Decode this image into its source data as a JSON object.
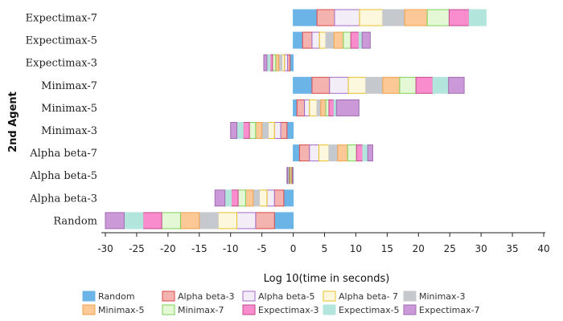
{
  "chart_data": {
    "type": "bar",
    "orientation": "horizontal",
    "stacked": "diverging",
    "xlabel": "Log 10(time in seconds)",
    "ylabel": "2nd Agent",
    "xlim": [
      -30,
      40
    ],
    "xticks": [
      -30,
      -25,
      -20,
      -15,
      -10,
      -5,
      0,
      5,
      10,
      15,
      20,
      25,
      30,
      35,
      40
    ],
    "grid": false,
    "legend_position": "bottom",
    "categories": [
      "Expectimax-7",
      "Expectimax-5",
      "Expectimax-3",
      "Minimax-7",
      "Minimax-5",
      "Minimax-3",
      "Alpha beta-7",
      "Alpha beta-5",
      "Alpha beta-3",
      "Random"
    ],
    "series": [
      {
        "name": "Random",
        "fill": "#6ab4e8",
        "stroke": "#6ab4e8",
        "values": [
          3.8,
          1.5,
          -0.5,
          3.0,
          0.6,
          -1.0,
          1.0,
          -0.1,
          -1.5,
          -3.0
        ]
      },
      {
        "name": "Alpha beta-3",
        "fill": "#f5b3b0",
        "stroke": "#d84a4a",
        "values": [
          2.8,
          1.5,
          -0.4,
          2.8,
          1.2,
          -1.0,
          1.6,
          -0.1,
          -1.5,
          -3.0
        ]
      },
      {
        "name": "Alpha beta-5",
        "fill": "#f3edf8",
        "stroke": "#a36cc8",
        "values": [
          4.0,
          1.2,
          -0.5,
          3.0,
          0.8,
          -1.0,
          1.5,
          -0.1,
          -1.2,
          -3.0
        ]
      },
      {
        "name": "Alpha beta- 7",
        "fill": "#fdf7de",
        "stroke": "#e8c22a",
        "values": [
          3.7,
          1.0,
          -0.4,
          2.8,
          1.2,
          -1.0,
          1.6,
          -0.1,
          -1.2,
          -3.0
        ]
      },
      {
        "name": "Minimax-3",
        "fill": "#c5c8cc",
        "stroke": "#c5c8cc",
        "values": [
          3.5,
          1.3,
          -0.5,
          2.7,
          0.6,
          -1.0,
          1.4,
          -0.1,
          -1.0,
          -3.0
        ]
      },
      {
        "name": "Minimax-5",
        "fill": "#fcc896",
        "stroke": "#f0a24a",
        "values": [
          3.6,
          1.5,
          -0.5,
          2.7,
          0.8,
          -1.0,
          1.6,
          -0.1,
          -1.2,
          -3.0
        ]
      },
      {
        "name": "Minimax-7",
        "fill": "#e4f8d6",
        "stroke": "#7dd055",
        "values": [
          3.5,
          1.2,
          -0.5,
          2.6,
          0.5,
          -1.0,
          1.4,
          -0.1,
          -1.2,
          -3.0
        ]
      },
      {
        "name": "Expectimax-3",
        "fill": "#f98ccc",
        "stroke": "#c24a8a",
        "values": [
          3.2,
          1.3,
          -0.4,
          2.7,
          0.8,
          -1.0,
          1.0,
          -0.1,
          -1.1,
          -3.0
        ]
      },
      {
        "name": "Expectimax-5",
        "fill": "#b2e6dd",
        "stroke": "#b2e6dd",
        "values": [
          2.7,
          0.5,
          -0.5,
          2.5,
          0.4,
          -1.0,
          0.8,
          -0.1,
          -1.0,
          -3.0
        ]
      },
      {
        "name": "Expectimax-7",
        "fill": "#cc99d8",
        "stroke": "#9f6bb0",
        "values": [
          0.0,
          1.3,
          -0.5,
          2.5,
          3.6,
          -1.0,
          0.8,
          -0.1,
          -1.6,
          -3.0
        ]
      }
    ]
  }
}
